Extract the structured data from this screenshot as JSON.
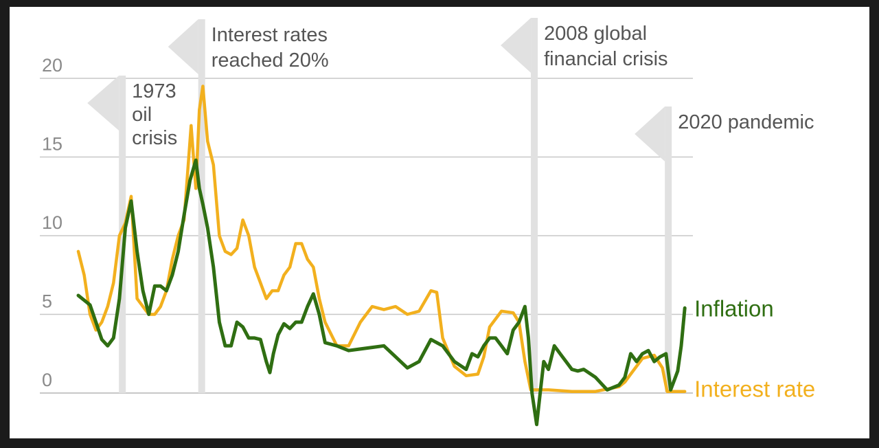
{
  "colors": {
    "inflation": "#2f6e12",
    "interest": "#f2b01e",
    "grid": "#c7c7c7",
    "marker": "#e1e1e1",
    "text": "#555555"
  },
  "chart_data": {
    "type": "line",
    "xlim": [
      1970,
      2022
    ],
    "ylim": [
      -2,
      21
    ],
    "yticks": [
      0,
      5,
      10,
      15,
      20
    ],
    "grid": "horizontal",
    "annotations": [
      {
        "x": 1973.75,
        "lines": [
          "1973",
          "oil",
          "crisis"
        ]
      },
      {
        "x": 1980.5,
        "lines": [
          "Interest rates",
          "reached 20%"
        ]
      },
      {
        "x": 2008.8,
        "lines": [
          "2008 global",
          "financial crisis"
        ]
      },
      {
        "x": 2020.2,
        "lines": [
          "2020 pandemic"
        ]
      }
    ],
    "series": [
      {
        "name": "Inflation",
        "key": "inflation",
        "x": [
          1970,
          1970.5,
          1971,
          1971.5,
          1972,
          1972.5,
          1973,
          1973.5,
          1974,
          1974.5,
          1975,
          1975.5,
          1976,
          1976.5,
          1977,
          1977.5,
          1978,
          1978.5,
          1979,
          1979.5,
          1980,
          1980.3,
          1980.6,
          1981,
          1981.5,
          1982,
          1982.5,
          1983,
          1983.5,
          1984,
          1984.5,
          1985,
          1985.5,
          1986,
          1986.3,
          1986.6,
          1987,
          1987.5,
          1988,
          1988.5,
          1989,
          1989.5,
          1990,
          1990.5,
          1991,
          1991.5,
          1992,
          1993,
          1994,
          1995,
          1996,
          1997,
          1998,
          1999,
          2000,
          2001,
          2002,
          2003,
          2003.5,
          2004,
          2004.5,
          2005,
          2005.5,
          2006,
          2006.5,
          2007,
          2007.5,
          2008,
          2008.3,
          2008.6,
          2009,
          2009.3,
          2009.6,
          2010,
          2010.5,
          2011,
          2011.5,
          2012,
          2012.5,
          2013,
          2014,
          2015,
          2016,
          2016.5,
          2017,
          2017.5,
          2018,
          2018.5,
          2019,
          2019.5,
          2020,
          2020.4,
          2020.8,
          2021,
          2021.3,
          2021.6
        ],
        "values": [
          6.2,
          5.9,
          5.6,
          4.5,
          3.4,
          3.0,
          3.5,
          6.0,
          10.5,
          12.2,
          9.0,
          6.5,
          5.0,
          6.8,
          6.8,
          6.5,
          7.5,
          9.0,
          11.3,
          13.5,
          14.8,
          13.0,
          12.0,
          10.5,
          8.0,
          4.5,
          3.0,
          3.0,
          4.5,
          4.2,
          3.5,
          3.5,
          3.4,
          2.0,
          1.3,
          2.5,
          3.7,
          4.4,
          4.1,
          4.5,
          4.5,
          5.5,
          6.3,
          5.0,
          3.2,
          3.1,
          3.0,
          2.7,
          2.8,
          2.9,
          3.0,
          2.3,
          1.6,
          2.0,
          3.4,
          3.0,
          2.0,
          1.5,
          2.5,
          2.3,
          3.0,
          3.5,
          3.5,
          3.0,
          2.5,
          4.0,
          4.5,
          5.5,
          3.5,
          0.0,
          -2.0,
          0.0,
          2.0,
          1.5,
          3.0,
          2.5,
          2.0,
          1.5,
          1.4,
          1.5,
          1.0,
          0.2,
          0.5,
          1.0,
          2.5,
          2.0,
          2.5,
          2.7,
          2.0,
          2.3,
          2.5,
          0.2,
          1.0,
          1.4,
          3.0,
          5.4
        ]
      },
      {
        "name": "Interest rate",
        "key": "interest",
        "x": [
          1970,
          1970.5,
          1971,
          1971.5,
          1972,
          1972.5,
          1973,
          1973.5,
          1974,
          1974.5,
          1975,
          1975.5,
          1976,
          1976.5,
          1977,
          1977.5,
          1978,
          1978.5,
          1979,
          1979.3,
          1979.6,
          1980,
          1980.3,
          1980.6,
          1981,
          1981.5,
          1982,
          1982.5,
          1983,
          1983.5,
          1984,
          1984.5,
          1985,
          1985.5,
          1986,
          1986.5,
          1987,
          1987.5,
          1988,
          1988.5,
          1989,
          1989.5,
          1990,
          1990.5,
          1991,
          1992,
          1993,
          1994,
          1995,
          1996,
          1997,
          1998,
          1999,
          2000,
          2000.5,
          2001,
          2002,
          2003,
          2004,
          2004.5,
          2005,
          2006,
          2007,
          2007.5,
          2008,
          2008.5,
          2009,
          2010,
          2012,
          2014,
          2016,
          2016.5,
          2017,
          2018,
          2019,
          2019.7,
          2020.1,
          2020.5,
          2021,
          2021.6
        ],
        "values": [
          9.0,
          7.5,
          5.0,
          4.0,
          4.5,
          5.5,
          7.0,
          10.0,
          10.8,
          12.5,
          6.0,
          5.5,
          5.0,
          5.0,
          5.5,
          6.5,
          8.5,
          10.0,
          11.0,
          14.0,
          17.0,
          13.0,
          18.0,
          19.5,
          16.0,
          14.5,
          10.0,
          9.0,
          8.8,
          9.2,
          11.0,
          10.0,
          8.0,
          7.0,
          6.0,
          6.5,
          6.5,
          7.5,
          8.0,
          9.5,
          9.5,
          8.5,
          8.0,
          6.0,
          4.5,
          3.0,
          3.0,
          4.5,
          5.5,
          5.3,
          5.5,
          5.0,
          5.2,
          6.5,
          6.4,
          3.5,
          1.7,
          1.1,
          1.2,
          2.3,
          4.2,
          5.2,
          5.1,
          4.5,
          2.0,
          0.2,
          0.2,
          0.2,
          0.1,
          0.1,
          0.4,
          0.7,
          1.2,
          2.2,
          2.4,
          1.6,
          0.1,
          0.1,
          0.1,
          0.1
        ]
      }
    ]
  }
}
